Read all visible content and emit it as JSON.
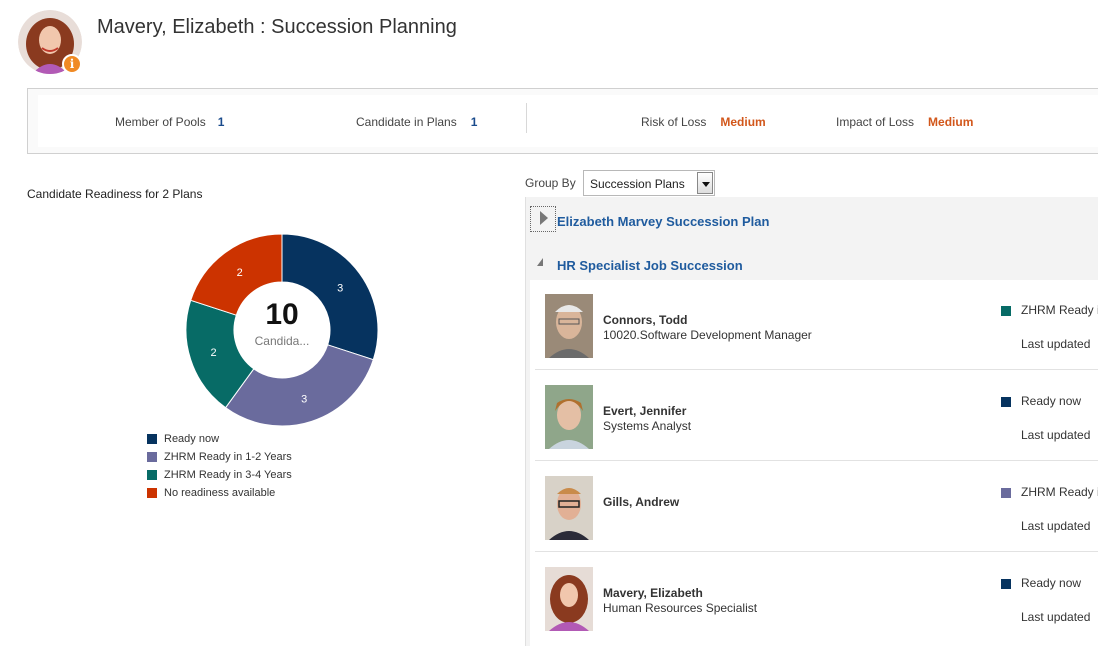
{
  "page": {
    "title": "Mavery, Elizabeth : Succession Planning"
  },
  "summary": {
    "member_of_pools_label": "Member of Pools",
    "member_of_pools_value": "1",
    "candidate_in_plans_label": "Candidate in Plans",
    "candidate_in_plans_value": "1",
    "risk_of_loss_label": "Risk of Loss",
    "risk_of_loss_value": "Medium",
    "impact_of_loss_label": "Impact of Loss",
    "impact_of_loss_value": "Medium"
  },
  "readiness": {
    "title": "Candidate Readiness for 2 Plans",
    "center_value": "10",
    "center_label": "Candida..."
  },
  "chart_data": {
    "type": "pie",
    "title": "Candidate Readiness for 2 Plans",
    "categories": [
      "Ready now",
      "ZHRM Ready in 1-2 Years",
      "ZHRM Ready in 3-4 Years",
      "No readiness available"
    ],
    "values": [
      3,
      3,
      2,
      2
    ],
    "colors": [
      "#06335f",
      "#6a6b9d",
      "#076b66",
      "#cc3300"
    ],
    "legend": "bottom"
  },
  "group_by": {
    "label": "Group By",
    "value": "Succession Plans"
  },
  "plans": [
    {
      "title": "Elizabeth Marvey Succession Plan",
      "expanded": false
    },
    {
      "title": "HR Specialist Job Succession",
      "expanded": true
    }
  ],
  "candidates": [
    {
      "name": "Connors, Todd",
      "job": "10020.Software Development Manager",
      "status": "ZHRM Ready i",
      "status_color": "#076b66",
      "last_updated": "Last updated"
    },
    {
      "name": "Evert, Jennifer",
      "job": "Systems Analyst",
      "status": "Ready now",
      "status_color": "#06335f",
      "last_updated": "Last updated"
    },
    {
      "name": "Gills, Andrew",
      "job": "",
      "status": "ZHRM Ready i",
      "status_color": "#6a6b9d",
      "last_updated": "Last updated"
    },
    {
      "name": "Mavery, Elizabeth",
      "job": "Human Resources Specialist",
      "status": "Ready now",
      "status_color": "#06335f",
      "last_updated": "Last updated"
    }
  ],
  "icons": {
    "info_badge": "info-icon",
    "expand": "triangle-right-icon",
    "collapse": "triangle-down-icon",
    "dropdown": "chevron-down-icon"
  }
}
